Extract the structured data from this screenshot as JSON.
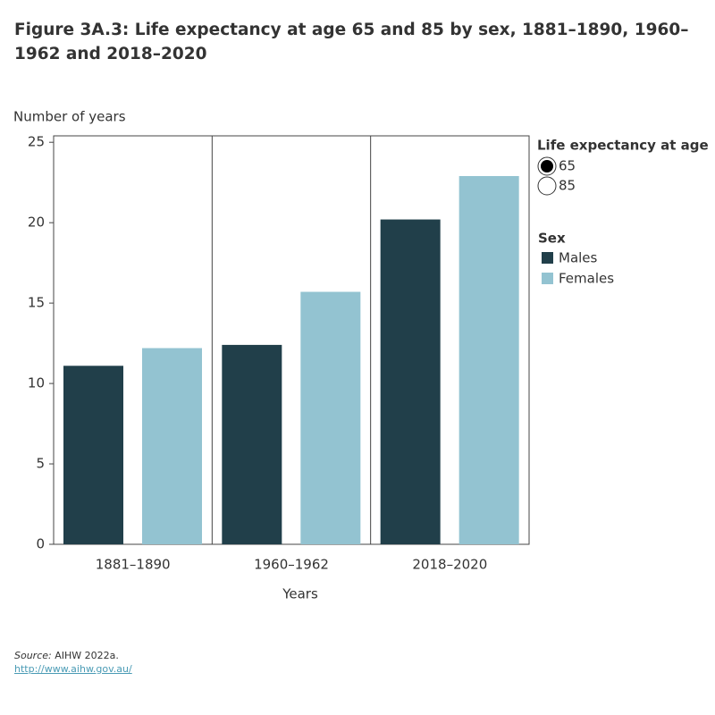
{
  "chart_data": {
    "type": "bar",
    "title": "Figure 3A.3: Life expectancy at age 65 and 85 by sex, 1881–1890, 1960–1962 and 2018–2020",
    "y_label": "Number of years",
    "x_label": "Years",
    "categories": [
      "1881–1890",
      "1960–1962",
      "2018–2020"
    ],
    "series": [
      {
        "name": "Males",
        "color": "#213f4a",
        "values": [
          11.1,
          12.4,
          20.2
        ]
      },
      {
        "name": "Females",
        "color": "#93c3d1",
        "values": [
          12.2,
          15.7,
          22.9
        ]
      }
    ],
    "ylim": [
      0,
      25.4
    ],
    "yticks": [
      0,
      5,
      10,
      15,
      20,
      25
    ],
    "grid": false,
    "legend_title": "Sex",
    "filter": {
      "title": "Life expectancy at age",
      "options": [
        "65",
        "85"
      ],
      "selected": "65"
    }
  },
  "source": {
    "label": "Source:",
    "text": "AIHW 2022a.",
    "link": "http://www.aihw.gov.au/"
  }
}
